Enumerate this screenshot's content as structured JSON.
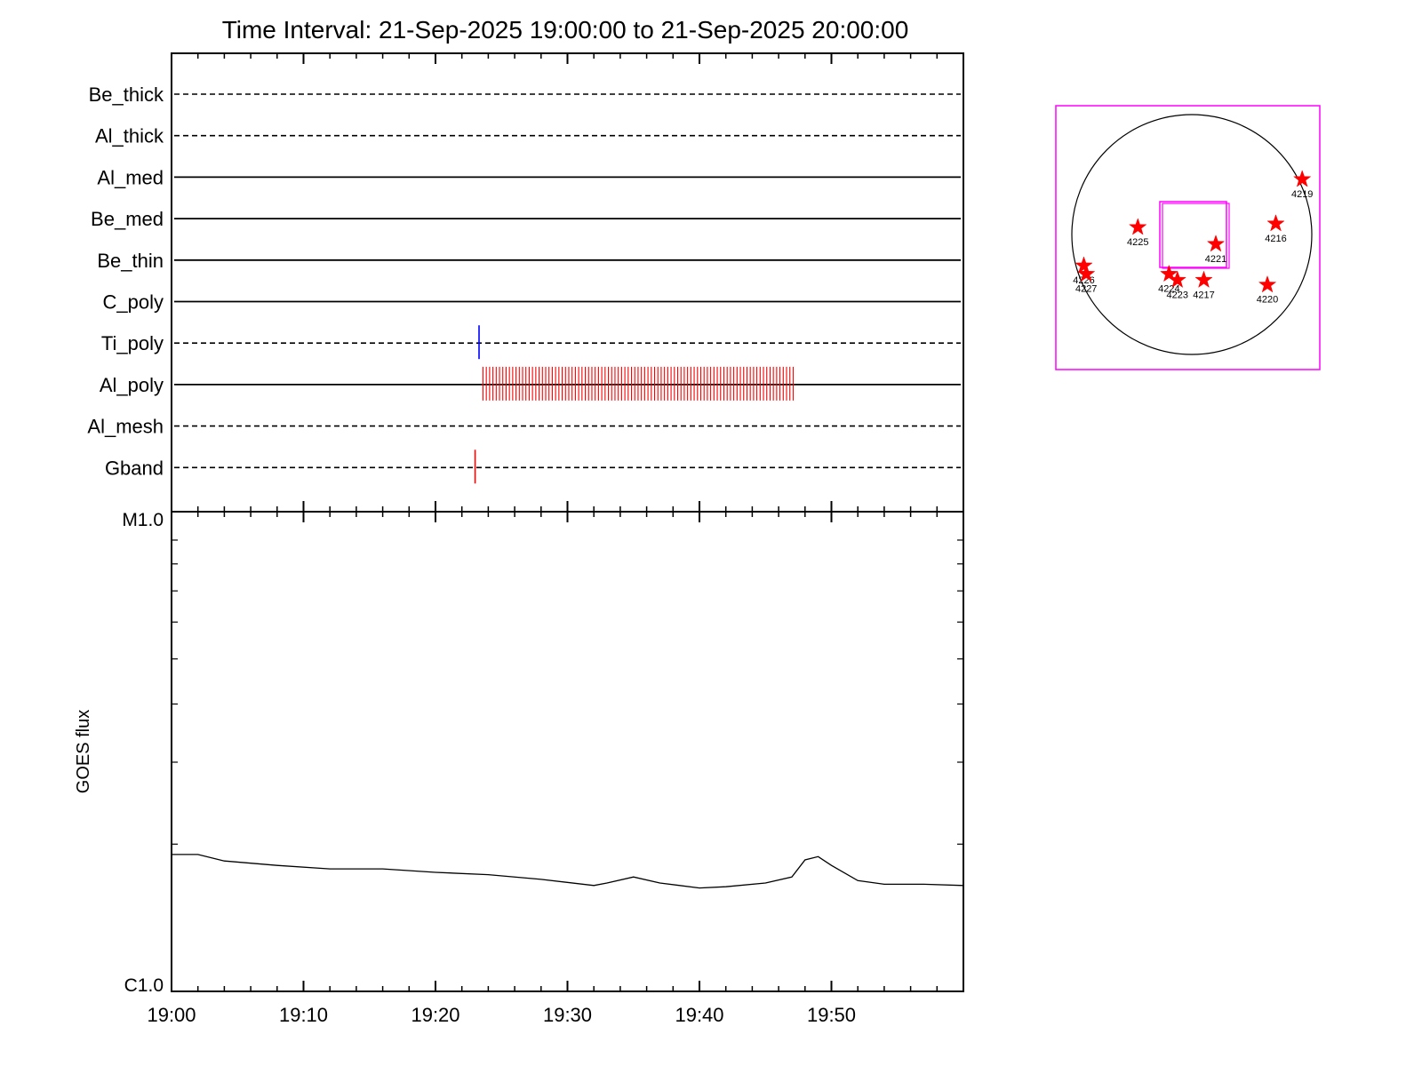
{
  "chart_data": [
    {
      "type": "timeline",
      "title": "Time Interval: 21-Sep-2025 19:00:00 to 21-Sep-2025 20:00:00",
      "x_start": "19:00",
      "x_end": "20:00",
      "x_major_ticks": [
        "19:00",
        "19:10",
        "19:20",
        "19:30",
        "19:40",
        "19:50"
      ],
      "x_minor_ticks_minutes": [
        2,
        4,
        6,
        8,
        12,
        14,
        16,
        18,
        22,
        24,
        26,
        28,
        32,
        34,
        36,
        38,
        42,
        44,
        46,
        48,
        52,
        54,
        56,
        58
      ],
      "channels": [
        {
          "name": "Be_thick",
          "style": "dashed",
          "events": []
        },
        {
          "name": "Al_thick",
          "style": "dashed",
          "events": []
        },
        {
          "name": "Al_med",
          "style": "solid",
          "events": []
        },
        {
          "name": "Be_med",
          "style": "solid",
          "events": []
        },
        {
          "name": "Be_thin",
          "style": "solid",
          "events": []
        },
        {
          "name": "C_poly",
          "style": "solid",
          "events": []
        },
        {
          "name": "Ti_poly",
          "style": "dashed",
          "events": [
            {
              "time_min": 23.3,
              "color": "#0000ff"
            }
          ]
        },
        {
          "name": "Al_poly",
          "style": "solid",
          "events_range_min": [
            23.6,
            47.1
          ],
          "event_interval_min": 0.25,
          "color": "#ff0000"
        },
        {
          "name": "Al_mesh",
          "style": "dashed",
          "events": []
        },
        {
          "name": "Gband",
          "style": "dashed",
          "events": [
            {
              "time_min": 23.0,
              "color": "#ff0000"
            }
          ]
        }
      ]
    },
    {
      "type": "line",
      "ylabel": "GOES flux",
      "y_scale": "log",
      "y_tick_labels": [
        "M1.0",
        "C1.0"
      ],
      "ylim": [
        1e-06,
        1e-05
      ],
      "series": [
        {
          "x_min": [
            0,
            2,
            4,
            8,
            12,
            16,
            20,
            24,
            28,
            32,
            33,
            35,
            37,
            40,
            42,
            45,
            47,
            48,
            49,
            50,
            52,
            54,
            57,
            60
          ],
          "y": [
            1.9e-06,
            1.9e-06,
            1.84e-06,
            1.8e-06,
            1.77e-06,
            1.77e-06,
            1.74e-06,
            1.72e-06,
            1.68e-06,
            1.63e-06,
            1.65e-06,
            1.7e-06,
            1.65e-06,
            1.61e-06,
            1.62e-06,
            1.65e-06,
            1.7e-06,
            1.85e-06,
            1.88e-06,
            1.8e-06,
            1.67e-06,
            1.64e-06,
            1.64e-06,
            1.63e-06
          ]
        }
      ]
    },
    {
      "type": "scatter",
      "subtype": "solar-disk-map",
      "marker_color": "#ff0000",
      "frame_color": "#ff00ff",
      "points": [
        {
          "label": "4219",
          "x": 0.92,
          "y": 0.46
        },
        {
          "label": "4216",
          "x": 0.7,
          "y": 0.09
        },
        {
          "label": "4225",
          "x": -0.45,
          "y": 0.06
        },
        {
          "label": "4221",
          "x": 0.2,
          "y": -0.08
        },
        {
          "label": "4226",
          "x": -0.9,
          "y": -0.26
        },
        {
          "label": "4227",
          "x": -0.88,
          "y": -0.33
        },
        {
          "label": "4224",
          "x": -0.19,
          "y": -0.33
        },
        {
          "label": "4223",
          "x": -0.12,
          "y": -0.38
        },
        {
          "label": "4217",
          "x": 0.1,
          "y": -0.38
        },
        {
          "label": "4220",
          "x": 0.63,
          "y": -0.42
        }
      ]
    }
  ]
}
